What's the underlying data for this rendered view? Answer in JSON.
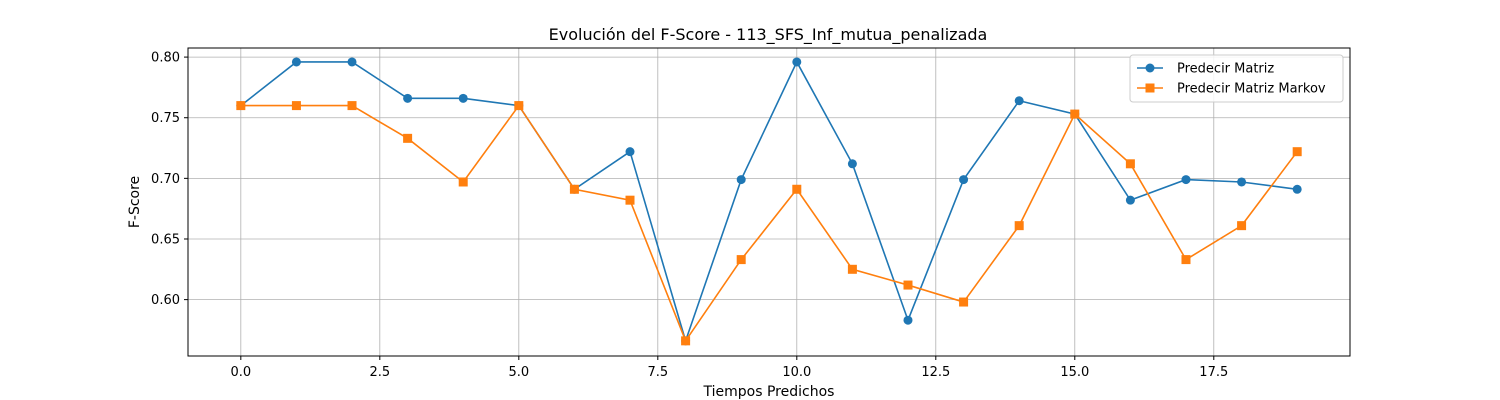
{
  "chart_data": {
    "type": "line",
    "title": "Evolución del F-Score - 113_SFS_Inf_mutua_penalizada",
    "xlabel": "Tiempos Predichos",
    "ylabel": "F-Score",
    "x": [
      0,
      1,
      2,
      3,
      4,
      5,
      6,
      7,
      8,
      9,
      10,
      11,
      12,
      13,
      14,
      15,
      16,
      17,
      18,
      19
    ],
    "xlim": [
      -0.95,
      19.95
    ],
    "ylim": [
      0.5535,
      0.8075
    ],
    "xticks": [
      0.0,
      2.5,
      5.0,
      7.5,
      10.0,
      12.5,
      15.0,
      17.5
    ],
    "xtick_labels": [
      "0.0",
      "2.5",
      "5.0",
      "7.5",
      "10.0",
      "12.5",
      "15.0",
      "17.5"
    ],
    "yticks": [
      0.6,
      0.65,
      0.7,
      0.75,
      0.8
    ],
    "ytick_labels": [
      "0.60",
      "0.65",
      "0.70",
      "0.75",
      "0.80"
    ],
    "grid": true,
    "legend_position": "top-right",
    "series": [
      {
        "name": "Predecir Matriz",
        "color": "#1f77b4",
        "marker": "circle",
        "values": [
          0.76,
          0.796,
          0.796,
          0.766,
          0.766,
          0.76,
          0.691,
          0.722,
          0.566,
          0.699,
          0.796,
          0.712,
          0.583,
          0.699,
          0.764,
          0.753,
          0.682,
          0.699,
          0.697,
          0.691
        ]
      },
      {
        "name": "Predecir Matriz Markov",
        "color": "#ff7f0e",
        "marker": "square",
        "values": [
          0.76,
          0.76,
          0.76,
          0.733,
          0.697,
          0.76,
          0.691,
          0.682,
          0.566,
          0.633,
          0.691,
          0.625,
          0.612,
          0.598,
          0.661,
          0.753,
          0.712,
          0.633,
          0.661,
          0.722
        ]
      }
    ]
  }
}
